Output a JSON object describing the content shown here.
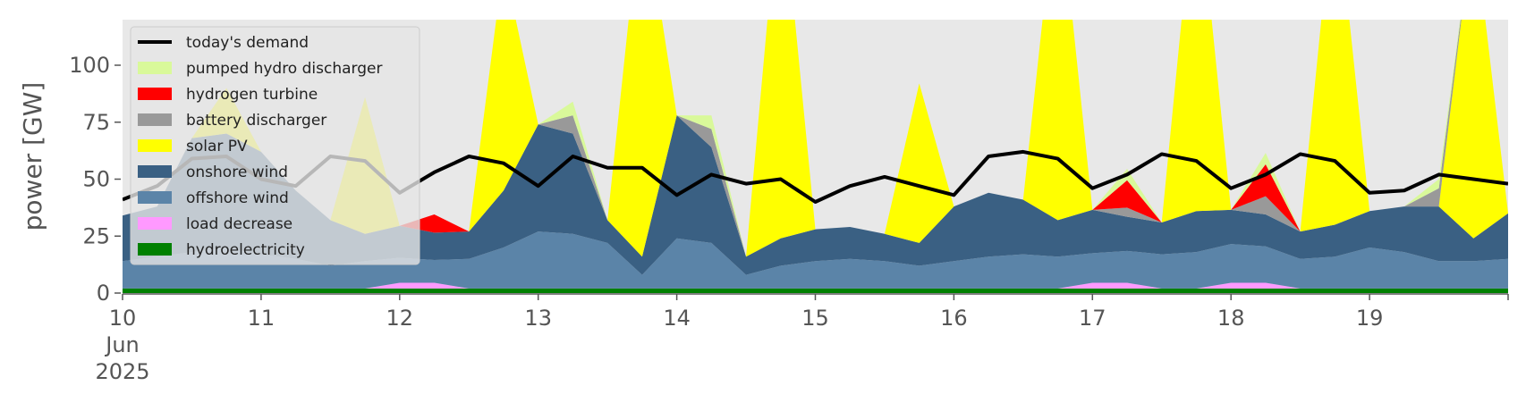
{
  "chart_data": {
    "type": "area",
    "ylabel": "power [GW]",
    "ylim": [
      0,
      120
    ],
    "y_ticks": [
      0,
      25,
      50,
      75,
      100
    ],
    "x_range": [
      "2025-06-10T00:00",
      "2025-06-20T00:00"
    ],
    "x_tick_labels": [
      {
        "date": "2025-06-10",
        "text": "10",
        "sub1": "Jun",
        "sub2": "2025"
      },
      {
        "date": "2025-06-11",
        "text": "11"
      },
      {
        "date": "2025-06-12",
        "text": "12"
      },
      {
        "date": "2025-06-13",
        "text": "13"
      },
      {
        "date": "2025-06-14",
        "text": "14"
      },
      {
        "date": "2025-06-15",
        "text": "15"
      },
      {
        "date": "2025-06-16",
        "text": "16"
      },
      {
        "date": "2025-06-17",
        "text": "17"
      },
      {
        "date": "2025-06-18",
        "text": "18"
      },
      {
        "date": "2025-06-19",
        "text": "19"
      }
    ],
    "legend_position": "upper-left",
    "background": "#e8e8e8",
    "x": [
      "2025-06-10 00:00",
      "2025-06-10 06:00",
      "2025-06-10 12:00",
      "2025-06-10 18:00",
      "2025-06-11 00:00",
      "2025-06-11 06:00",
      "2025-06-11 12:00",
      "2025-06-11 18:00",
      "2025-06-12 00:00",
      "2025-06-12 06:00",
      "2025-06-12 12:00",
      "2025-06-12 18:00",
      "2025-06-13 00:00",
      "2025-06-13 06:00",
      "2025-06-13 12:00",
      "2025-06-13 18:00",
      "2025-06-14 00:00",
      "2025-06-14 06:00",
      "2025-06-14 12:00",
      "2025-06-14 18:00",
      "2025-06-15 00:00",
      "2025-06-15 06:00",
      "2025-06-15 12:00",
      "2025-06-15 18:00",
      "2025-06-16 00:00",
      "2025-06-16 06:00",
      "2025-06-16 12:00",
      "2025-06-16 18:00",
      "2025-06-17 00:00",
      "2025-06-17 06:00",
      "2025-06-17 12:00",
      "2025-06-17 18:00",
      "2025-06-18 00:00",
      "2025-06-18 06:00",
      "2025-06-18 12:00",
      "2025-06-18 18:00",
      "2025-06-19 00:00",
      "2025-06-19 06:00",
      "2025-06-19 12:00",
      "2025-06-19 18:00",
      "2025-06-20 00:00"
    ],
    "stack": [
      {
        "name": "hydroelectricity",
        "color": "#008000",
        "values": [
          2,
          2,
          2,
          2,
          2,
          2,
          2,
          2,
          2,
          2,
          2,
          2,
          2,
          2,
          2,
          2,
          2,
          2,
          2,
          2,
          2,
          2,
          2,
          2,
          2,
          2,
          2,
          2,
          2,
          2,
          2,
          2,
          2,
          2,
          2,
          2,
          2,
          2,
          2,
          2,
          2
        ]
      },
      {
        "name": "load decrease",
        "color": "#ff99ff",
        "values": [
          0,
          0,
          0,
          0,
          0,
          0,
          0,
          0,
          2.5,
          2.5,
          0,
          0,
          0,
          0,
          0,
          0,
          0,
          0,
          0,
          0,
          0,
          0,
          0,
          0,
          0,
          0,
          0,
          0,
          2.5,
          2.5,
          0,
          0,
          2.5,
          2.5,
          0,
          0,
          0,
          0,
          0,
          0,
          0
        ]
      },
      {
        "name": "offshore wind",
        "color": "#5b84a8",
        "values": [
          12,
          14,
          16,
          18,
          15,
          13,
          10,
          12,
          11,
          10,
          13,
          18,
          25,
          24,
          20,
          6,
          22,
          20,
          6,
          10,
          12,
          13,
          12,
          10,
          12,
          14,
          15,
          14,
          13,
          14,
          15,
          16,
          17,
          16,
          13,
          14,
          18,
          16,
          12,
          12,
          13
        ]
      },
      {
        "name": "onshore wind",
        "color": "#3a6083",
        "values": [
          20,
          22,
          50,
          50,
          45,
          30,
          20,
          12,
          14,
          12,
          12,
          25,
          47,
          44,
          10,
          8,
          54,
          42,
          8,
          12,
          14,
          14,
          12,
          10,
          24,
          28,
          24,
          16,
          19,
          15,
          14,
          18,
          15,
          14,
          12,
          14,
          16,
          20,
          24,
          10,
          20
        ]
      },
      {
        "name": "solar PV",
        "color": "#ffff00",
        "values": [
          0,
          0,
          0,
          20,
          0,
          0,
          0,
          60,
          0,
          0,
          0,
          100,
          0,
          0,
          0,
          160,
          0,
          0,
          0,
          160,
          0,
          0,
          0,
          70,
          0,
          0,
          0,
          150,
          0,
          0,
          0,
          150,
          0,
          0,
          0,
          150,
          0,
          0,
          0,
          140,
          0
        ]
      },
      {
        "name": "battery discharger",
        "color": "#999999",
        "values": [
          0,
          0,
          0,
          0,
          0,
          0,
          0,
          0,
          0,
          0,
          0,
          0,
          0,
          8,
          0,
          0,
          0,
          8,
          0,
          0,
          0,
          0,
          0,
          0,
          0,
          0,
          0,
          0,
          0,
          4,
          0,
          0,
          0,
          8,
          0,
          0,
          0,
          0,
          8,
          0,
          0
        ]
      },
      {
        "name": "hydrogen turbine",
        "color": "#ff0000",
        "values": [
          0,
          0,
          0,
          0,
          0,
          0,
          0,
          0,
          0,
          8,
          0,
          0,
          0,
          0,
          0,
          0,
          0,
          0,
          0,
          0,
          0,
          0,
          0,
          0,
          0,
          0,
          0,
          0,
          0,
          12,
          0,
          0,
          0,
          14,
          0,
          0,
          0,
          0,
          0,
          0,
          0
        ]
      },
      {
        "name": "pumped hydro discharger",
        "color": "#d9f99a",
        "values": [
          0,
          0,
          0,
          0,
          0,
          0,
          0,
          0,
          0,
          0,
          0,
          0,
          0,
          6,
          0,
          0,
          0,
          6,
          0,
          0,
          0,
          0,
          0,
          0,
          0,
          0,
          0,
          0,
          0,
          5,
          0,
          0,
          0,
          5,
          0,
          0,
          0,
          0,
          4,
          0,
          0
        ]
      }
    ],
    "demand": {
      "name": "today's demand",
      "color": "#000000",
      "values": [
        41,
        47,
        59,
        60,
        50,
        47,
        60,
        58,
        44,
        53,
        60,
        57,
        47,
        60,
        55,
        55,
        43,
        52,
        48,
        50,
        40,
        47,
        51,
        47,
        43,
        60,
        62,
        59,
        46,
        52,
        61,
        58,
        46,
        52,
        61,
        58,
        44,
        45,
        52,
        50,
        48
      ]
    },
    "legend": [
      "today's demand",
      "pumped hydro discharger",
      "hydrogen turbine",
      "battery discharger",
      "solar PV",
      "onshore wind",
      "offshore wind",
      "load decrease",
      "hydroelectricity"
    ]
  }
}
